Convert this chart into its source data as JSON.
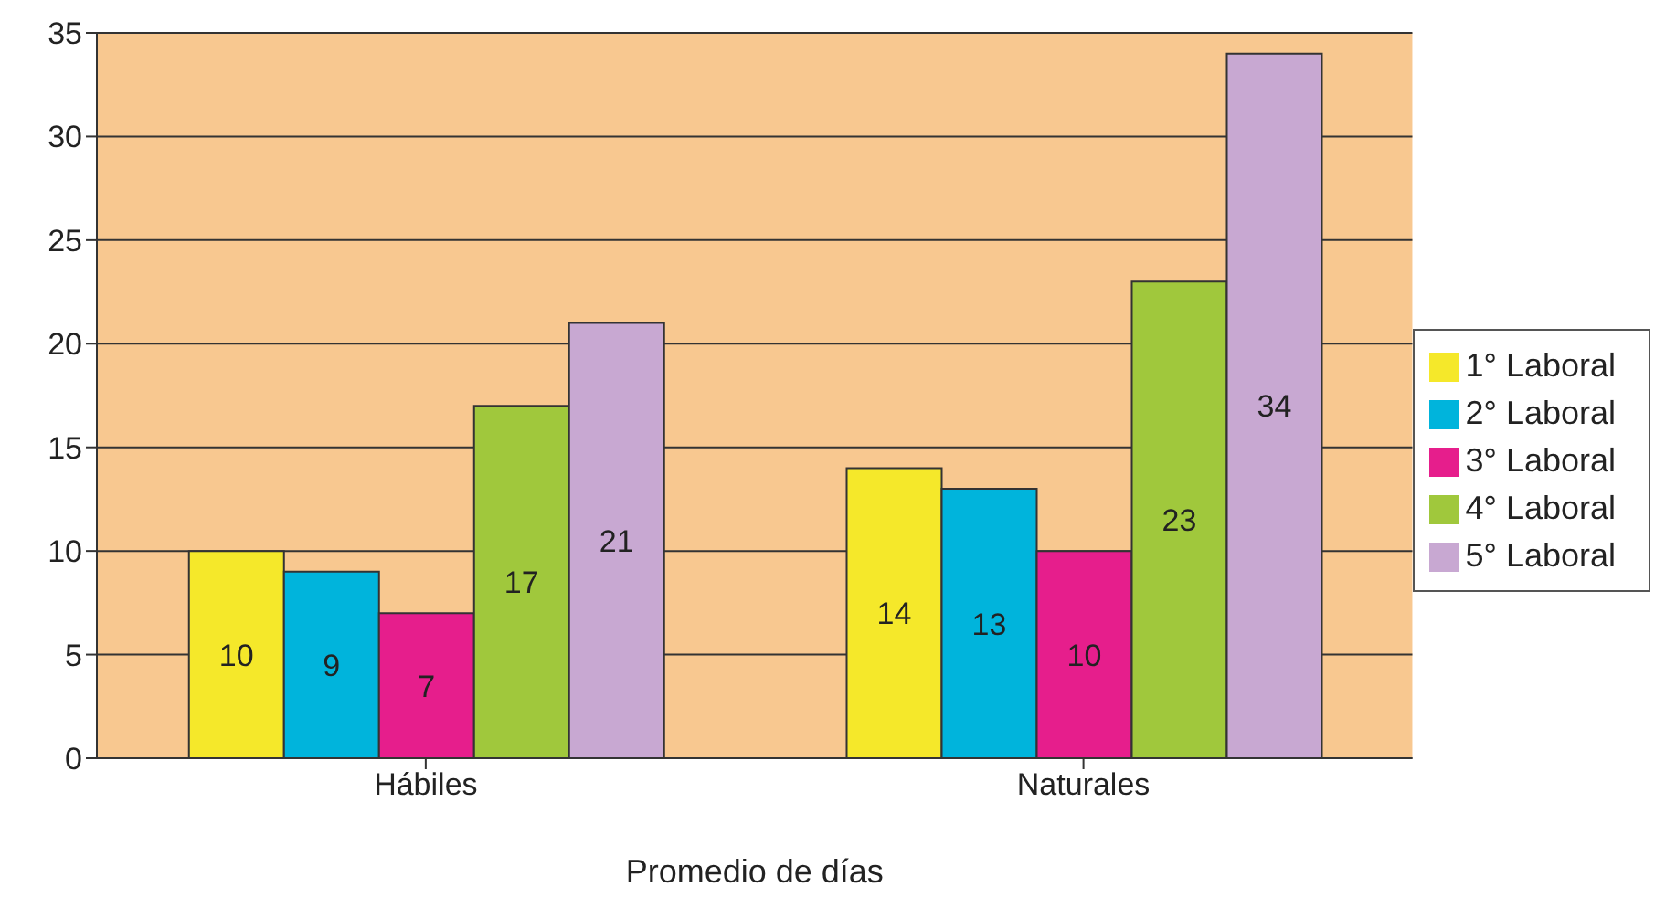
{
  "chart_data": {
    "type": "bar",
    "xlabel": "Promedio de días",
    "categories": [
      "Hábiles",
      "Naturales"
    ],
    "series": [
      {
        "name": "1° Laboral",
        "color": "#f5e82a",
        "values": [
          10,
          14
        ]
      },
      {
        "name": "2° Laboral",
        "color": "#00b4dc",
        "values": [
          9,
          13
        ]
      },
      {
        "name": "3° Laboral",
        "color": "#e61e8c",
        "values": [
          7,
          10
        ]
      },
      {
        "name": "4° Laboral",
        "color": "#a0c83c",
        "values": [
          17,
          23
        ]
      },
      {
        "name": "5° Laboral",
        "color": "#c8a8d2",
        "values": [
          21,
          34
        ]
      }
    ],
    "ylim": [
      0,
      35
    ],
    "yticks": [
      0,
      5,
      10,
      15,
      20,
      25,
      30,
      35
    ],
    "grid": "y",
    "legend": "right",
    "data_labels": true
  }
}
